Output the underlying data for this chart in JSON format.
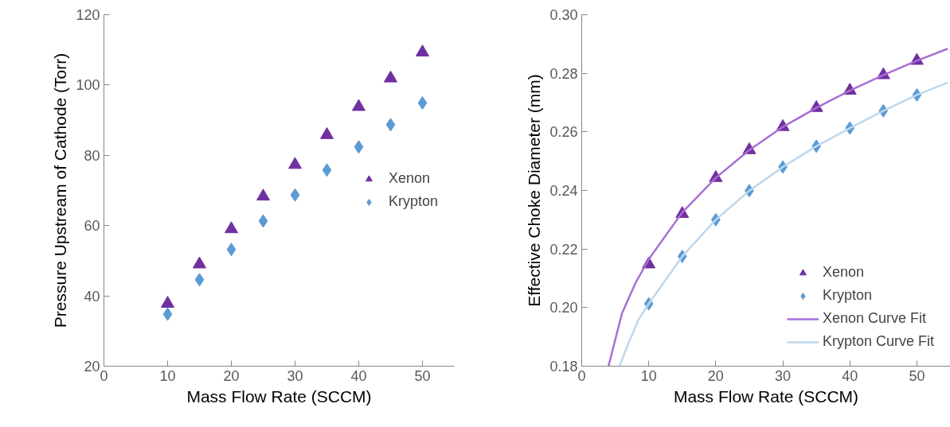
{
  "chart_data": [
    {
      "type": "scatter",
      "xlabel": "Mass Flow Rate (SCCM)",
      "ylabel": "Pressure Upstream of Cathode (Torr)",
      "x": [
        10,
        15,
        20,
        25,
        30,
        35,
        40,
        45,
        50
      ],
      "xlim": [
        0,
        55
      ],
      "xticks": [
        0,
        10,
        20,
        30,
        40,
        50
      ],
      "ylim": [
        20,
        120
      ],
      "yticks": [
        20,
        40,
        60,
        80,
        100,
        120
      ],
      "grid": false,
      "legend": "right",
      "series": [
        {
          "name": "Xenon",
          "color": "#7030a0",
          "marker": "triangle",
          "values": [
            37.8,
            49.0,
            59.0,
            68.3,
            77.3,
            85.8,
            93.8,
            101.9,
            109.3
          ]
        },
        {
          "name": "Krypton",
          "color": "#5b9bd5",
          "marker": "diamond",
          "values": [
            34.8,
            44.6,
            53.2,
            61.3,
            68.7,
            75.8,
            82.4,
            88.7,
            94.9
          ]
        }
      ]
    },
    {
      "type": "scatter",
      "xlabel": "Mass Flow Rate (SCCM)",
      "ylabel": "Effective Choke Diameter (mm)",
      "x": [
        10,
        15,
        20,
        25,
        30,
        35,
        40,
        45,
        50
      ],
      "xlim": [
        0,
        55
      ],
      "xticks": [
        0,
        10,
        20,
        30,
        40,
        50
      ],
      "ylim": [
        0.18,
        0.3
      ],
      "yticks": [
        {
          "value": 0.18,
          "label": "0.18"
        },
        {
          "value": 0.2,
          "label": "0.20"
        },
        {
          "value": 0.22,
          "label": "0.22"
        },
        {
          "value": 0.24,
          "label": "0.24"
        },
        {
          "value": 0.26,
          "label": "0.26"
        },
        {
          "value": 0.28,
          "label": "0.28"
        },
        {
          "value": 0.3,
          "label": "0.30"
        }
      ],
      "grid": false,
      "legend": "bottom right",
      "series": [
        {
          "name": "Xenon",
          "color": "#7030a0",
          "marker": "triangle",
          "values": [
            0.2148,
            0.232,
            0.2443,
            0.2538,
            0.2617,
            0.2682,
            0.2741,
            0.2794,
            0.2843
          ]
        },
        {
          "name": "Krypton",
          "color": "#5b9bd5",
          "marker": "diamond",
          "values": [
            0.2013,
            0.2175,
            0.23,
            0.2399,
            0.248,
            0.2551,
            0.2613,
            0.2672,
            0.2726
          ]
        },
        {
          "name": "Xenon Curve Fit",
          "type": "line",
          "color": "#a86ed4",
          "x": [
            4.0,
            6,
            8,
            10,
            15,
            20,
            25,
            30,
            35,
            40,
            45,
            50,
            54.6
          ],
          "values": [
            0.18,
            0.198,
            0.2083,
            0.2165,
            0.2325,
            0.2443,
            0.2538,
            0.2617,
            0.2682,
            0.2741,
            0.2794,
            0.2843,
            0.2884
          ]
        },
        {
          "name": "Krypton Curve Fit",
          "type": "line",
          "color": "#bdd7ee",
          "x": [
            5.65,
            7,
            8.5,
            10,
            15,
            20,
            25,
            30,
            35,
            40,
            45,
            50,
            54.6
          ],
          "values": [
            0.18,
            0.188,
            0.196,
            0.2013,
            0.2175,
            0.23,
            0.2399,
            0.248,
            0.2551,
            0.2613,
            0.2672,
            0.2726,
            0.2768
          ]
        }
      ]
    }
  ]
}
